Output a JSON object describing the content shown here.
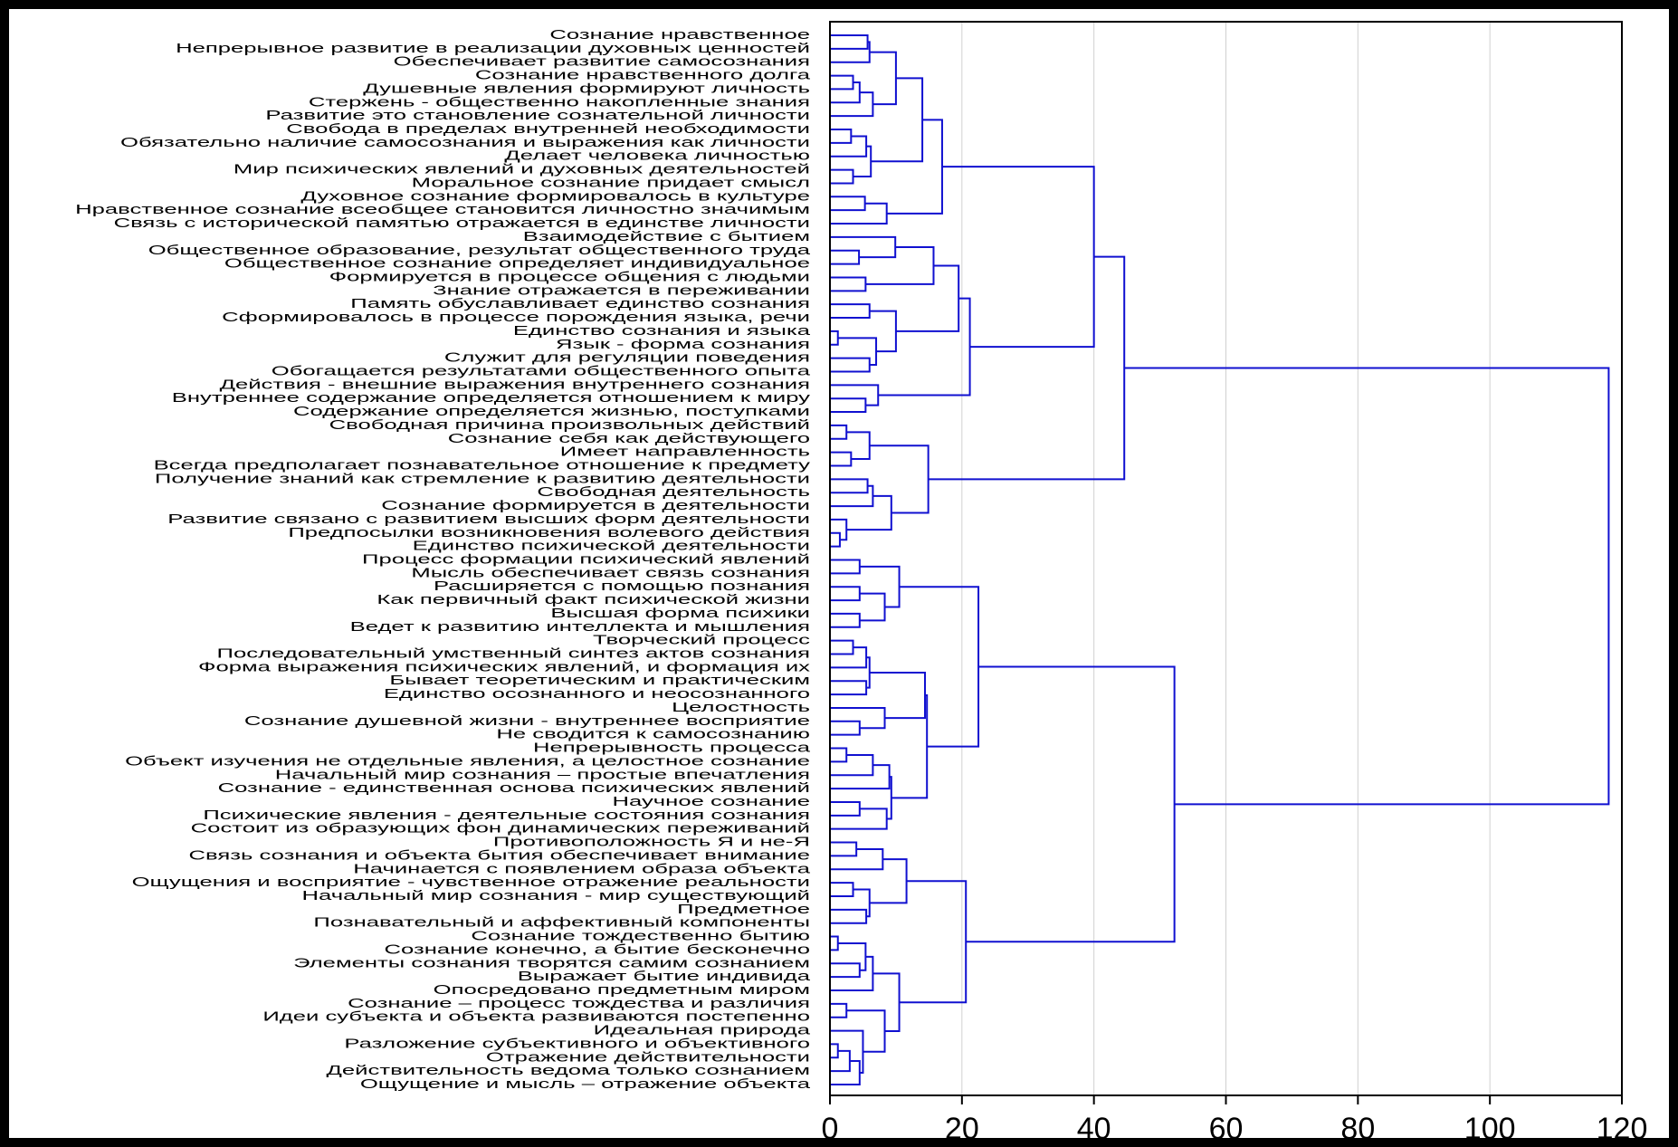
{
  "chart_data": {
    "type": "dendrogram",
    "orientation": "horizontal",
    "color": "#1010d0",
    "grid": true,
    "xlim": [
      0,
      120
    ],
    "xticks": [
      0,
      20,
      40,
      60,
      80,
      100,
      120
    ],
    "leaves": [
      "Сознание нравственное",
      "Непрерывное развитие в реализации духовных ценностей",
      "Обеспечивает развитие самосознания",
      "Сознание нравственного долга",
      "Душевные явления формируют личность",
      "Стержень - общественно накопленные знания",
      "Развитие это становление сознательной личности",
      "Свобода в пределах внутренней необходимости",
      "Обязательно наличие самосознания и выражения как личности",
      "Делает человека личностью",
      "Мир психических явлений и духовных деятельностей",
      "Моральное сознание придает смысл",
      "Духовное сознание формировалось в культуре",
      "Нравственное сознание всеобщее становится личностно значимым",
      "Связь с исторической памятью отражается в единстве личности",
      "Взаимодействие с бытием",
      "Общественное образование, результат общественного труда",
      "Общественное сознание определяет индивидуальное",
      "Формируется в процессе общения с людьми",
      "Знание отражается в переживании",
      "Память обуславливает единство сознания",
      "Сформировалось в процессе порождения языка, речи",
      "Единство сознания и языка",
      "Язык - форма сознания",
      "Служит для регуляции поведения",
      "Обогащается результатами общественного опыта",
      "Действия - внешние выражения внутреннего сознания",
      "Внутреннее содержание определяется отношением к миру",
      "Содержание определяется жизнью, поступками",
      "Свободная причина произвольных действий",
      "Сознание себя как действующего",
      "Имеет направленность",
      "Всегда предполагает познавательное отношение к предмету",
      "Получение знаний как стремление к развитию деятельности",
      "Свободная деятельность",
      "Сознание формируется в деятельности",
      "Развитие связано с развитием высших форм деятельности",
      "Предпосылки возникновения волевого действия",
      "Единство психической деятельности",
      "Процесс формации психический явлений",
      "Мысль обеспечивает связь сознания",
      "Расширяется с помощью познания",
      "Как первичный факт психической жизни",
      "Высшая форма психики",
      "Ведет к развитию интеллекта и мышления",
      "Творческий процесс",
      "Последовательный умственный синтез актов сознания",
      "Форма выражения психических явлений, и формация их",
      "Бывает теоретическим и практическим",
      "Единство осознанного и неосознанного",
      "Целостность",
      "Сознание душевной жизни - внутреннее восприятие",
      "Не сводится к самосознанию",
      "Непрерывность процесса",
      "Объект изучения не отдельные явления, а целостное сознание",
      "Начальный мир сознания – простые впечатления",
      "Сознание - единственная основа психических явлений",
      "Научное сознание",
      "Психические явления - деятельные состояния сознания",
      "Состоит из образующих фон динамических переживаний",
      "Противоположность Я и не-Я",
      "Связь сознания и объекта бытия обеспечивает внимание",
      "Начинается с появлением образа объекта",
      "Ощущения и восприятие - чувственное отражение реальности",
      "Начальный мир сознания - мир существующий",
      "Предметное",
      "Познавательный и аффективный компоненты",
      "Сознание тождественно бытию",
      "Сознание конечно, а бытие бесконечно",
      "Элементы сознания творятся самим сознанием",
      "Выражает бытие индивида",
      "Опосредовано предметным миром",
      "Сознание – процесс тождества и различия",
      "Идеи субъекта и объекта развиваются постепенно",
      "Идеальная природа",
      "Разложение субъективного и объективного",
      "Отражение действительности",
      "Действительность ведома только сознанием",
      "Ощущение и мысль – отражение объекта"
    ],
    "merges": [
      [
        0,
        1,
        5.7
      ],
      [
        79,
        2,
        6
      ],
      [
        3,
        4,
        3.5
      ],
      [
        81,
        5,
        4.5
      ],
      [
        82,
        6,
        6.5
      ],
      [
        80,
        83,
        10
      ],
      [
        7,
        8,
        3.2
      ],
      [
        85,
        9,
        5.5
      ],
      [
        10,
        11,
        3.5
      ],
      [
        86,
        87,
        6.2
      ],
      [
        84,
        88,
        14
      ],
      [
        12,
        13,
        5.3
      ],
      [
        90,
        14,
        8.6
      ],
      [
        89,
        91,
        17
      ],
      [
        16,
        17,
        4.4
      ],
      [
        15,
        93,
        9.9
      ],
      [
        18,
        19,
        5.4
      ],
      [
        94,
        95,
        15.7
      ],
      [
        20,
        21,
        6
      ],
      [
        22,
        23,
        1.2
      ],
      [
        24,
        25,
        6
      ],
      [
        98,
        99,
        7
      ],
      [
        97,
        100,
        10
      ],
      [
        96,
        101,
        19.5
      ],
      [
        27,
        28,
        5.4
      ],
      [
        26,
        103,
        7.3
      ],
      [
        102,
        104,
        21.2
      ],
      [
        92,
        105,
        40
      ],
      [
        29,
        30,
        2.5
      ],
      [
        31,
        32,
        3.2
      ],
      [
        107,
        108,
        6
      ],
      [
        33,
        34,
        5.7
      ],
      [
        110,
        35,
        6.5
      ],
      [
        37,
        38,
        1.5
      ],
      [
        36,
        112,
        2.5
      ],
      [
        111,
        113,
        9.3
      ],
      [
        109,
        114,
        14.9
      ],
      [
        106,
        115,
        44.6
      ],
      [
        39,
        40,
        4.5
      ],
      [
        41,
        42,
        4.5
      ],
      [
        43,
        44,
        4.5
      ],
      [
        118,
        119,
        8.3
      ],
      [
        117,
        120,
        10.5
      ],
      [
        45,
        46,
        3.5
      ],
      [
        122,
        47,
        5.5
      ],
      [
        48,
        49,
        5.5
      ],
      [
        123,
        124,
        6
      ],
      [
        51,
        52,
        4.5
      ],
      [
        50,
        126,
        8.3
      ],
      [
        125,
        127,
        14.4
      ],
      [
        53,
        54,
        2.5
      ],
      [
        129,
        55,
        6.5
      ],
      [
        130,
        56,
        9
      ],
      [
        57,
        58,
        4.5
      ],
      [
        132,
        59,
        8.6
      ],
      [
        131,
        133,
        9.3
      ],
      [
        128,
        134,
        14.7
      ],
      [
        121,
        135,
        22.5
      ],
      [
        60,
        61,
        4
      ],
      [
        137,
        62,
        8
      ],
      [
        63,
        64,
        3.5
      ],
      [
        65,
        66,
        5.5
      ],
      [
        139,
        140,
        6
      ],
      [
        138,
        141,
        11.6
      ],
      [
        67,
        68,
        1.2
      ],
      [
        69,
        70,
        4.5
      ],
      [
        143,
        144,
        5.4
      ],
      [
        145,
        71,
        6.5
      ],
      [
        72,
        73,
        2.5
      ],
      [
        75,
        76,
        1.2
      ],
      [
        148,
        77,
        3
      ],
      [
        149,
        78,
        4.5
      ],
      [
        74,
        150,
        5
      ],
      [
        147,
        151,
        8.3
      ],
      [
        146,
        152,
        10.5
      ],
      [
        142,
        153,
        20.6
      ],
      [
        136,
        154,
        52.2
      ],
      [
        116,
        155,
        118
      ]
    ]
  }
}
